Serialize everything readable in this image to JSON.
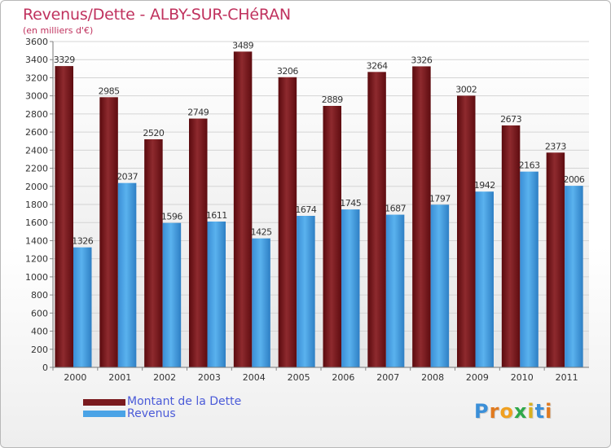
{
  "chart_data": {
    "type": "bar",
    "title": "Revenus/Dette - ALBY-SUR-CHéRAN",
    "subtitle": "(en milliers d'€)",
    "categories": [
      "2000",
      "2001",
      "2002",
      "2003",
      "2004",
      "2005",
      "2006",
      "2007",
      "2008",
      "2009",
      "2010",
      "2011"
    ],
    "series": [
      {
        "name": "Montant de la Dette",
        "color": "#7a1a1e",
        "values": [
          3329,
          2985,
          2520,
          2749,
          3489,
          3206,
          2889,
          3264,
          3326,
          3002,
          2673,
          2373
        ]
      },
      {
        "name": "Revenus",
        "color": "#4aa3e6",
        "values": [
          1326,
          2037,
          1596,
          1611,
          1425,
          1674,
          1745,
          1687,
          1797,
          1942,
          2163,
          2006
        ]
      }
    ],
    "ylim": [
      0,
      3600
    ],
    "yticks": [
      0,
      200,
      400,
      600,
      800,
      1000,
      1200,
      1400,
      1600,
      1800,
      2000,
      2200,
      2400,
      2600,
      2800,
      3000,
      3200,
      3400,
      3600
    ],
    "grid": true,
    "legend_position": "bottom-left",
    "xlabel": "",
    "ylabel": ""
  },
  "logo": {
    "text": "Proxiti",
    "letters": [
      {
        "ch": "P",
        "color": "#3b8fd8"
      },
      {
        "ch": "r",
        "color": "#e07a1f"
      },
      {
        "ch": "o",
        "color": "#f0a020"
      },
      {
        "ch": "x",
        "color": "#2ea84a"
      },
      {
        "ch": "i",
        "color": "#d8b020"
      },
      {
        "ch": "t",
        "color": "#3b8fd8"
      },
      {
        "ch": "i",
        "color": "#e07a1f"
      }
    ]
  }
}
